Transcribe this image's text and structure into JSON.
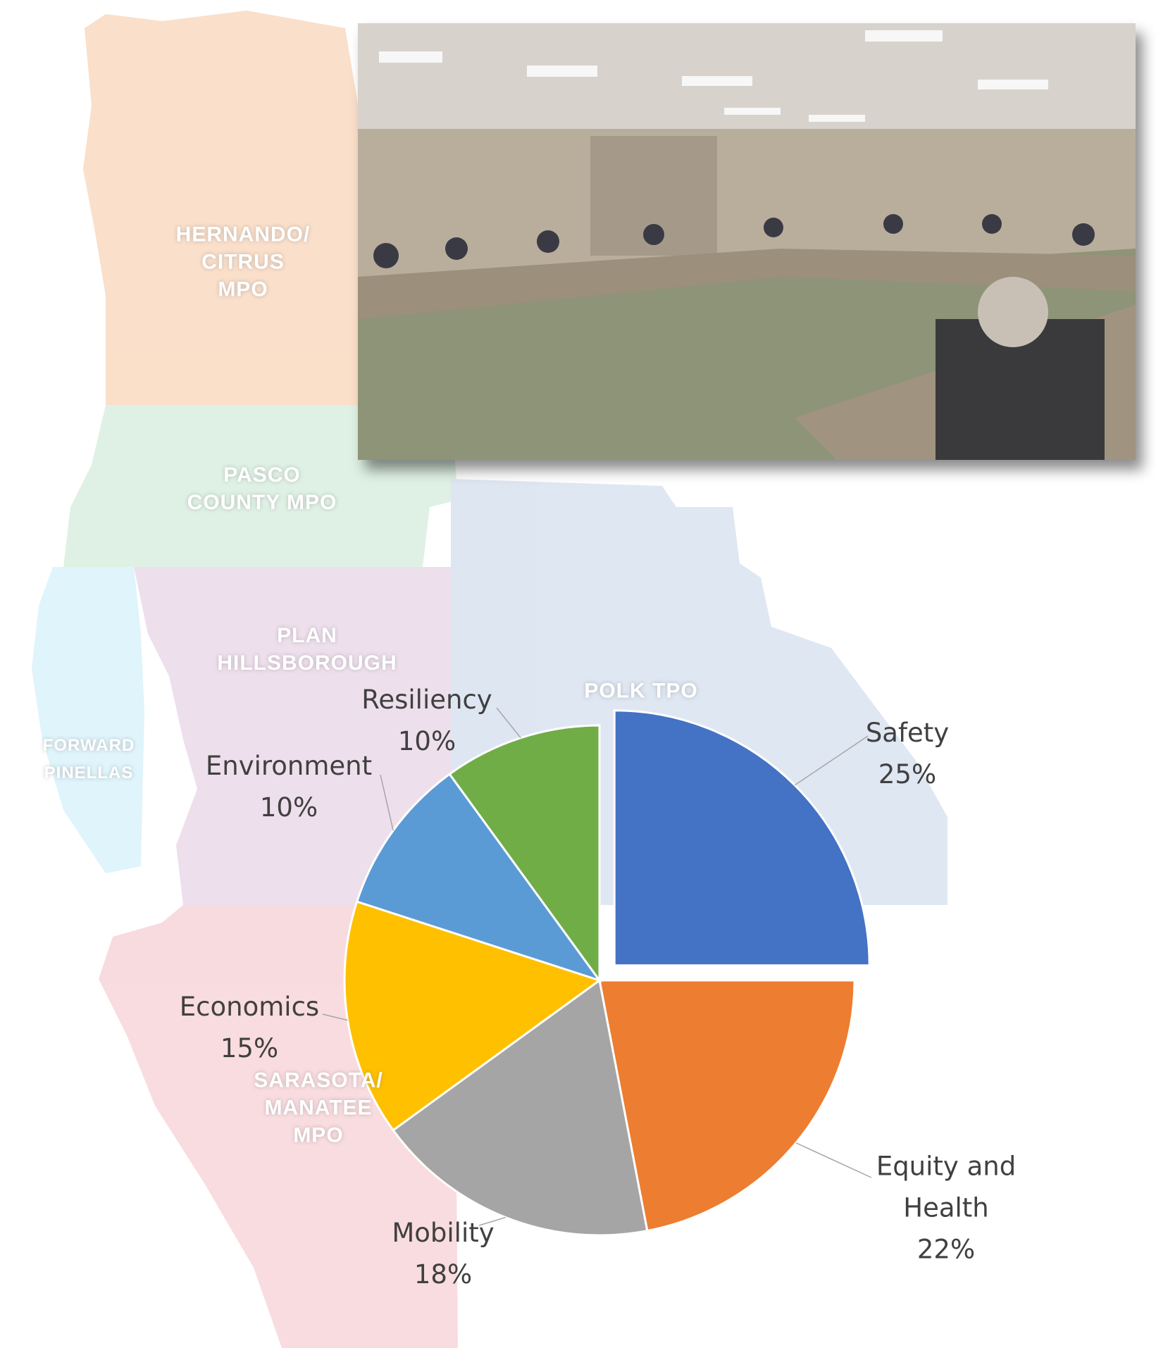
{
  "chart_data": {
    "type": "pie",
    "categories": [
      "Safety",
      "Equity and Health",
      "Mobility",
      "Economics",
      "Environment",
      "Resiliency"
    ],
    "values": [
      25,
      22,
      18,
      15,
      10,
      10
    ],
    "value_labels": [
      "25%",
      "22%",
      "18%",
      "15%",
      "10%",
      "10%"
    ],
    "colors": [
      "#4472c4",
      "#ed7d31",
      "#a5a5a5",
      "#ffc000",
      "#5b9bd5",
      "#70ad47"
    ],
    "exploded": [
      true,
      false,
      false,
      false,
      false,
      false
    ]
  },
  "map_labels": [
    {
      "lines": [
        "HERNANDO/",
        "CITRUS",
        "MPO"
      ]
    },
    {
      "lines": [
        "PASCO",
        "COUNTY MPO"
      ]
    },
    {
      "lines": [
        "PLAN",
        "HILLSBOROUGH"
      ]
    },
    {
      "lines": [
        "FORWARD",
        "PINELLAS"
      ]
    },
    {
      "lines": [
        "POLK TPO"
      ]
    },
    {
      "lines": [
        "SARASOTA/",
        "MANATEE",
        "MPO"
      ]
    }
  ]
}
